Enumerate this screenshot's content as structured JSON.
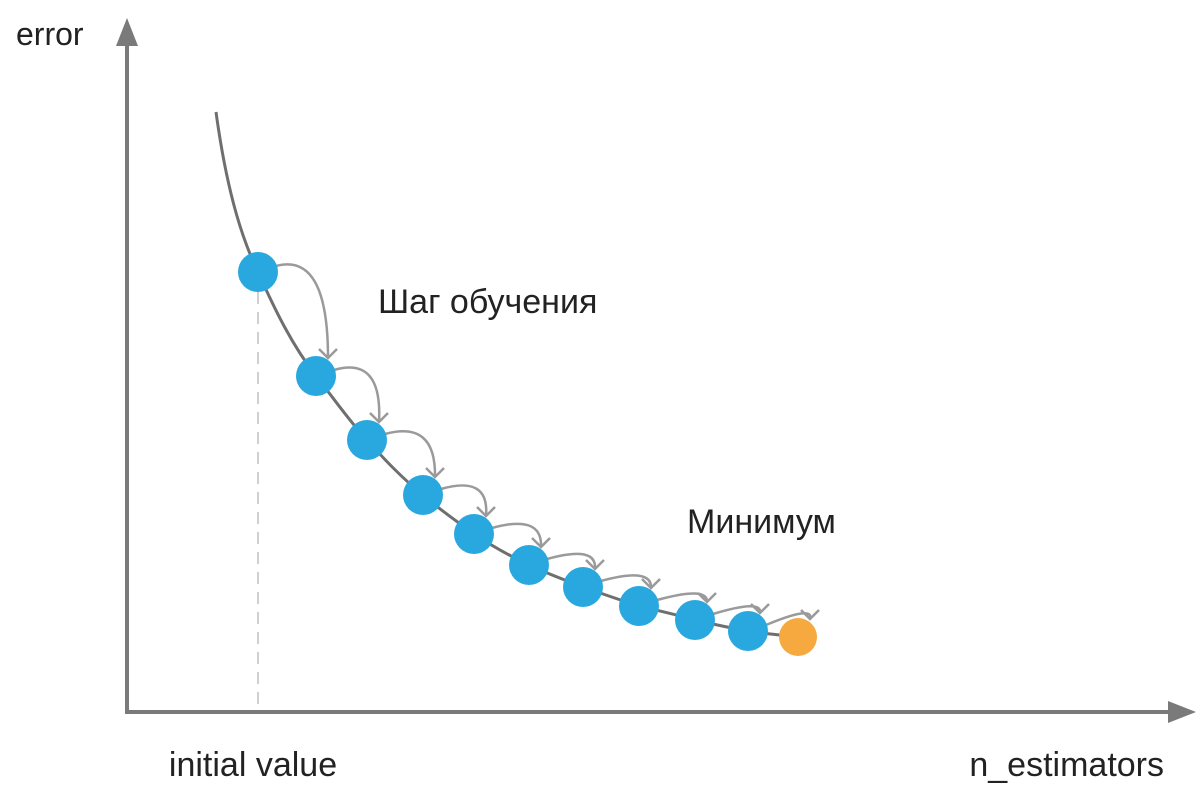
{
  "diagram": {
    "y_axis_label": "error",
    "x_axis_label": "n_estimators",
    "initial_label": "initial value",
    "step_annotation": "Шаг обучения",
    "minimum_annotation": "Минимум"
  },
  "colors": {
    "axis": "#7a7a7a",
    "curve": "#6f6f6f",
    "step_point": "#29a8e0",
    "minimum_point": "#f5a93e",
    "arrow": "#9a9a9a",
    "guide": "#d0d0d0"
  },
  "icons": {
    "y_axis_arrow": "arrow-up-icon",
    "x_axis_arrow": "arrow-right-icon",
    "step_arrow": "curved-arrow-icon"
  }
}
